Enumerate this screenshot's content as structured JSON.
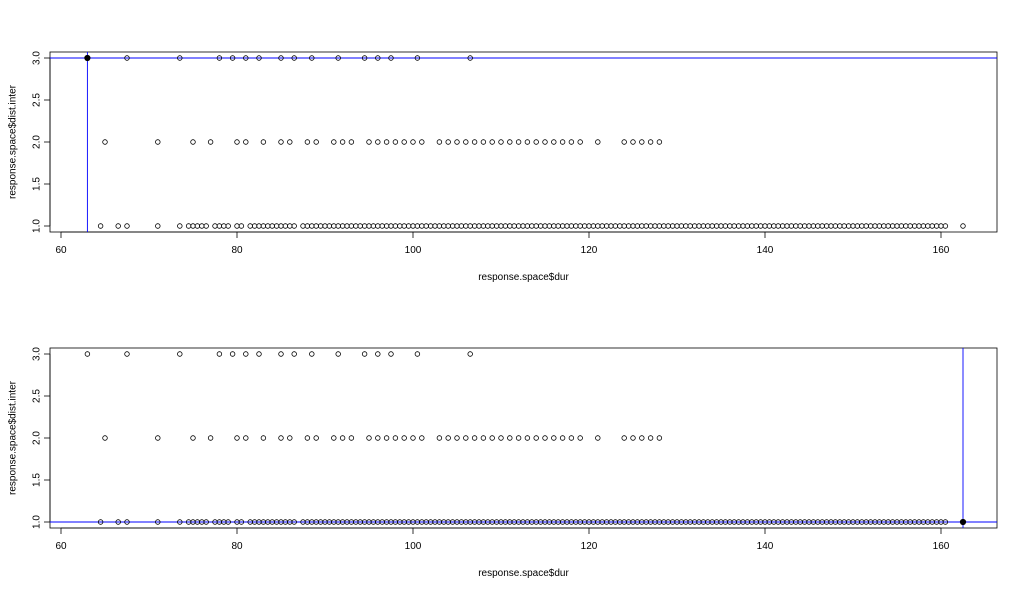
{
  "chart_data": [
    {
      "type": "scatter",
      "xlabel": "response.space$dur",
      "ylabel": "response.space$dist.inter",
      "xlim": [
        60,
        165
      ],
      "ylim": [
        1.0,
        3.0
      ],
      "x_ticks": [
        "60",
        "80",
        "100",
        "120",
        "140",
        "160"
      ],
      "y_ticks": [
        "1.0",
        "1.5",
        "2.0",
        "2.5",
        "3.0"
      ],
      "highlight": {
        "x": 63,
        "y": 3.0,
        "color": "#0000ff"
      },
      "series": [
        {
          "y": 3.0,
          "x": [
            63,
            67.5,
            73.5,
            78,
            79.5,
            81,
            82.5,
            85,
            86.5,
            88.5,
            91.5,
            94.5,
            96,
            97.5,
            100.5,
            106.5
          ]
        },
        {
          "y": 2.0,
          "x": [
            65,
            71,
            75,
            77,
            80,
            81,
            83,
            85,
            86,
            88,
            89,
            91,
            92,
            93,
            95,
            96,
            97,
            98,
            99,
            100,
            101,
            103,
            104,
            105,
            106,
            107,
            108,
            109,
            110,
            111,
            112,
            113,
            114,
            115,
            116,
            117,
            118,
            119,
            121,
            124,
            125,
            126,
            127,
            128
          ]
        },
        {
          "y": 1.0,
          "x": [
            64.5,
            66.5,
            67.5,
            71,
            73.5,
            74.5,
            75,
            75.5,
            76,
            76.5,
            77.5,
            78,
            78.5,
            79,
            80,
            80.5,
            81.5,
            82,
            82.5,
            83,
            83.5,
            84,
            84.5,
            85,
            85.5,
            86,
            86.5,
            87.5,
            88,
            88.5,
            89,
            89.5,
            90,
            90.5,
            91,
            91.5,
            92,
            92.5,
            93,
            93.5,
            94,
            94.5,
            95,
            95.5,
            96,
            96.5,
            97,
            97.5,
            98,
            98.5,
            99,
            99.5,
            100,
            100.5,
            101,
            101.5,
            102,
            102.5,
            103,
            103.5,
            104,
            104.5,
            105,
            105.5,
            106,
            106.5,
            107,
            107.5,
            108,
            108.5,
            109,
            109.5,
            110,
            110.5,
            111,
            111.5,
            112,
            112.5,
            113,
            113.5,
            114,
            114.5,
            115,
            115.5,
            116,
            116.5,
            117,
            117.5,
            118,
            118.5,
            119,
            119.5,
            120,
            120.5,
            121,
            121.5,
            122,
            122.5,
            123,
            123.5,
            124,
            124.5,
            125,
            125.5,
            126,
            126.5,
            127,
            127.5,
            128,
            128.5,
            129,
            129.5,
            130,
            130.5,
            131,
            131.5,
            132,
            132.5,
            133,
            133.5,
            134,
            134.5,
            135,
            135.5,
            136,
            136.5,
            137,
            137.5,
            138,
            138.5,
            139,
            139.5,
            140,
            140.5,
            141,
            141.5,
            142,
            142.5,
            143,
            143.5,
            144,
            144.5,
            145,
            145.5,
            146,
            146.5,
            147,
            147.5,
            148,
            148.5,
            149,
            149.5,
            150,
            150.5,
            151,
            151.5,
            152,
            152.5,
            153,
            153.5,
            154,
            154.5,
            155,
            155.5,
            156,
            156.5,
            157,
            157.5,
            158,
            158.5,
            159,
            159.5,
            160,
            160.5,
            162.5
          ]
        }
      ]
    },
    {
      "type": "scatter",
      "xlabel": "response.space$dur",
      "ylabel": "response.space$dist.inter",
      "xlim": [
        60,
        165
      ],
      "ylim": [
        1.0,
        3.0
      ],
      "x_ticks": [
        "60",
        "80",
        "100",
        "120",
        "140",
        "160"
      ],
      "y_ticks": [
        "1.0",
        "1.5",
        "2.0",
        "2.5",
        "3.0"
      ],
      "highlight": {
        "x": 162.5,
        "y": 1.0,
        "color": "#0000ff"
      },
      "series": [
        {
          "y": 3.0,
          "x": [
            63,
            67.5,
            73.5,
            78,
            79.5,
            81,
            82.5,
            85,
            86.5,
            88.5,
            91.5,
            94.5,
            96,
            97.5,
            100.5,
            106.5
          ]
        },
        {
          "y": 2.0,
          "x": [
            65,
            71,
            75,
            77,
            80,
            81,
            83,
            85,
            86,
            88,
            89,
            91,
            92,
            93,
            95,
            96,
            97,
            98,
            99,
            100,
            101,
            103,
            104,
            105,
            106,
            107,
            108,
            109,
            110,
            111,
            112,
            113,
            114,
            115,
            116,
            117,
            118,
            119,
            121,
            124,
            125,
            126,
            127,
            128
          ]
        },
        {
          "y": 1.0,
          "x": [
            64.5,
            66.5,
            67.5,
            71,
            73.5,
            74.5,
            75,
            75.5,
            76,
            76.5,
            77.5,
            78,
            78.5,
            79,
            80,
            80.5,
            81.5,
            82,
            82.5,
            83,
            83.5,
            84,
            84.5,
            85,
            85.5,
            86,
            86.5,
            87.5,
            88,
            88.5,
            89,
            89.5,
            90,
            90.5,
            91,
            91.5,
            92,
            92.5,
            93,
            93.5,
            94,
            94.5,
            95,
            95.5,
            96,
            96.5,
            97,
            97.5,
            98,
            98.5,
            99,
            99.5,
            100,
            100.5,
            101,
            101.5,
            102,
            102.5,
            103,
            103.5,
            104,
            104.5,
            105,
            105.5,
            106,
            106.5,
            107,
            107.5,
            108,
            108.5,
            109,
            109.5,
            110,
            110.5,
            111,
            111.5,
            112,
            112.5,
            113,
            113.5,
            114,
            114.5,
            115,
            115.5,
            116,
            116.5,
            117,
            117.5,
            118,
            118.5,
            119,
            119.5,
            120,
            120.5,
            121,
            121.5,
            122,
            122.5,
            123,
            123.5,
            124,
            124.5,
            125,
            125.5,
            126,
            126.5,
            127,
            127.5,
            128,
            128.5,
            129,
            129.5,
            130,
            130.5,
            131,
            131.5,
            132,
            132.5,
            133,
            133.5,
            134,
            134.5,
            135,
            135.5,
            136,
            136.5,
            137,
            137.5,
            138,
            138.5,
            139,
            139.5,
            140,
            140.5,
            141,
            141.5,
            142,
            142.5,
            143,
            143.5,
            144,
            144.5,
            145,
            145.5,
            146,
            146.5,
            147,
            147.5,
            148,
            148.5,
            149,
            149.5,
            150,
            150.5,
            151,
            151.5,
            152,
            152.5,
            153,
            153.5,
            154,
            154.5,
            155,
            155.5,
            156,
            156.5,
            157,
            157.5,
            158,
            158.5,
            159,
            159.5,
            160,
            160.5,
            162.5
          ]
        }
      ]
    }
  ]
}
